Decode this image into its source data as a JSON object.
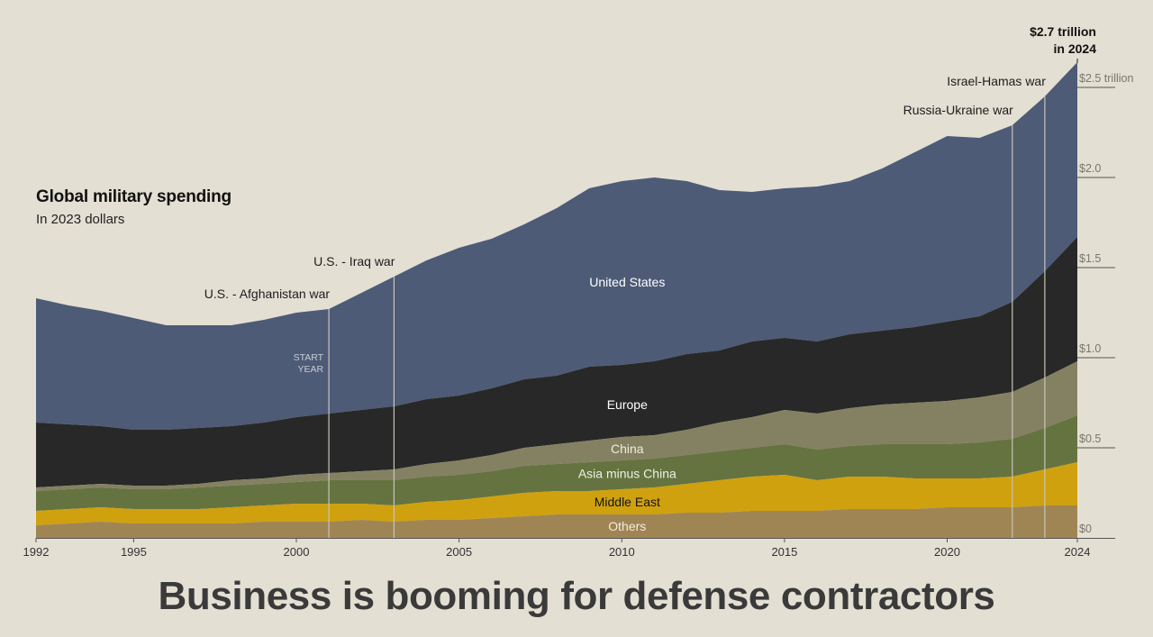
{
  "headline": "Business is booming for defense contractors",
  "chart_data": {
    "type": "area",
    "stacked": true,
    "title": "Global military spending",
    "subtitle": "In 2023 dollars",
    "unit": "trillion USD",
    "total_annotation": {
      "line1": "$2.7 trillion",
      "line2": "in 2024"
    },
    "x": [
      1992,
      1993,
      1994,
      1995,
      1996,
      1997,
      1998,
      1999,
      2000,
      2001,
      2002,
      2003,
      2004,
      2005,
      2006,
      2007,
      2008,
      2009,
      2010,
      2011,
      2012,
      2013,
      2014,
      2015,
      2016,
      2017,
      2018,
      2019,
      2020,
      2021,
      2022,
      2023,
      2024
    ],
    "xlim": [
      1992,
      2024
    ],
    "ylim": [
      0,
      2.75
    ],
    "x_ticks": [
      {
        "value": 1992,
        "label": "1992"
      },
      {
        "value": 1995,
        "label": "1995"
      },
      {
        "value": 2000,
        "label": "2000"
      },
      {
        "value": 2005,
        "label": "2005"
      },
      {
        "value": 2010,
        "label": "2010"
      },
      {
        "value": 2015,
        "label": "2015"
      },
      {
        "value": 2020,
        "label": "2020"
      },
      {
        "value": 2024,
        "label": "2024"
      }
    ],
    "y_ticks": [
      {
        "value": 0,
        "label": "$0"
      },
      {
        "value": 0.5,
        "label": "$0.5"
      },
      {
        "value": 1.0,
        "label": "$1.0"
      },
      {
        "value": 1.5,
        "label": "$1.5"
      },
      {
        "value": 2.0,
        "label": "$2.0"
      },
      {
        "value": 2.5,
        "label": "$2.5 trillion"
      }
    ],
    "series": [
      {
        "name": "Others",
        "color": "#a08554",
        "label_color": "#f2ecdf",
        "label_x": 2010,
        "label_yfrac": 0.5,
        "values": [
          0.07,
          0.08,
          0.09,
          0.08,
          0.08,
          0.08,
          0.08,
          0.09,
          0.09,
          0.09,
          0.1,
          0.09,
          0.1,
          0.1,
          0.11,
          0.12,
          0.13,
          0.13,
          0.13,
          0.13,
          0.14,
          0.14,
          0.15,
          0.15,
          0.15,
          0.16,
          0.16,
          0.16,
          0.17,
          0.17,
          0.17,
          0.18,
          0.18
        ]
      },
      {
        "name": "Middle East",
        "color": "#cfa10f",
        "label_color": "#141414",
        "label_x": 2010,
        "label_yfrac": 0.5,
        "values": [
          0.08,
          0.08,
          0.08,
          0.08,
          0.08,
          0.08,
          0.09,
          0.09,
          0.1,
          0.1,
          0.09,
          0.09,
          0.1,
          0.11,
          0.12,
          0.13,
          0.13,
          0.13,
          0.14,
          0.15,
          0.16,
          0.18,
          0.19,
          0.2,
          0.17,
          0.18,
          0.18,
          0.17,
          0.16,
          0.16,
          0.17,
          0.2,
          0.24
        ]
      },
      {
        "name": "Asia minus China",
        "color": "#657340",
        "label_color": "#eef0e2",
        "label_x": 2010,
        "label_yfrac": 0.55,
        "values": [
          0.11,
          0.11,
          0.11,
          0.11,
          0.11,
          0.12,
          0.12,
          0.12,
          0.12,
          0.13,
          0.13,
          0.14,
          0.14,
          0.14,
          0.14,
          0.15,
          0.15,
          0.16,
          0.16,
          0.16,
          0.16,
          0.16,
          0.16,
          0.17,
          0.17,
          0.17,
          0.18,
          0.19,
          0.19,
          0.2,
          0.21,
          0.23,
          0.26
        ]
      },
      {
        "name": "China",
        "color": "#848163",
        "label_color": "#eeebe0",
        "label_x": 2010,
        "label_yfrac": 0.5,
        "values": [
          0.02,
          0.02,
          0.02,
          0.02,
          0.02,
          0.02,
          0.03,
          0.03,
          0.04,
          0.04,
          0.05,
          0.06,
          0.07,
          0.08,
          0.09,
          0.1,
          0.11,
          0.12,
          0.13,
          0.13,
          0.14,
          0.16,
          0.17,
          0.19,
          0.2,
          0.21,
          0.22,
          0.23,
          0.24,
          0.25,
          0.26,
          0.28,
          0.3
        ]
      },
      {
        "name": "Europe",
        "color": "#282828",
        "label_color": "#ffffff",
        "label_x": 2010,
        "label_yfrac": 0.45,
        "values": [
          0.36,
          0.34,
          0.32,
          0.31,
          0.31,
          0.31,
          0.3,
          0.31,
          0.32,
          0.33,
          0.34,
          0.35,
          0.36,
          0.36,
          0.37,
          0.38,
          0.38,
          0.41,
          0.4,
          0.41,
          0.42,
          0.4,
          0.42,
          0.4,
          0.4,
          0.41,
          0.41,
          0.42,
          0.44,
          0.45,
          0.5,
          0.59,
          0.69
        ]
      },
      {
        "name": "United States",
        "color": "#4d5b77",
        "label_color": "#ffffff",
        "label_x": 2010,
        "label_yfrac": 0.45,
        "values": [
          0.69,
          0.66,
          0.64,
          0.62,
          0.58,
          0.57,
          0.56,
          0.57,
          0.58,
          0.58,
          0.65,
          0.72,
          0.77,
          0.82,
          0.83,
          0.86,
          0.93,
          0.99,
          1.02,
          1.02,
          0.96,
          0.89,
          0.83,
          0.83,
          0.86,
          0.85,
          0.9,
          0.97,
          1.03,
          0.99,
          0.98,
          0.97,
          0.97
        ]
      }
    ],
    "events": [
      {
        "label": "START\nYEAR",
        "is_marker_note": true,
        "x": 2001,
        "text": "START"
      },
      {
        "label": "U.S. - Afghanistan war",
        "x": 2001
      },
      {
        "label": "U.S. - Iraq war",
        "x": 2003
      },
      {
        "label": "Russia-Ukraine war",
        "x": 2022
      },
      {
        "label": "Israel-Hamas war",
        "x": 2023
      }
    ],
    "start_year_note": [
      "START",
      "YEAR"
    ]
  }
}
